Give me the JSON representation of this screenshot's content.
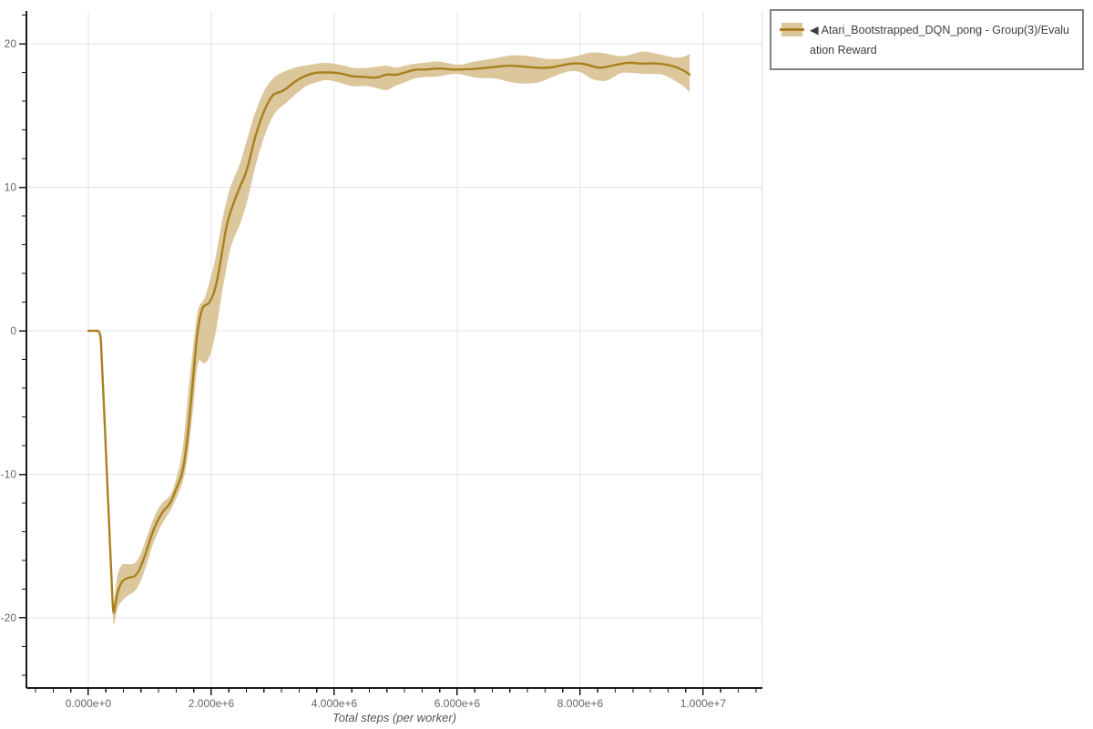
{
  "legend": {
    "marker": "◀",
    "label": "Atari_Bootstrapped_DQN_pong - Group(3)/Evaluation Reward"
  },
  "colors": {
    "line": "#a9801e",
    "band": "#dcc79c",
    "grid": "#e3e3e3",
    "plot_border": "#dddddd",
    "axis": "#1a1a1a",
    "tick_text": "#666666",
    "axis_title_text": "#555555",
    "legend_border": "#828282",
    "background": "#ffffff"
  },
  "chart_data": {
    "type": "line",
    "title": "",
    "xlabel": "Total steps (per worker)",
    "ylabel": "",
    "grid": true,
    "legend_position": "top-right-outside",
    "xlim": [
      -1007000,
      10963000
    ],
    "ylim": [
      -24.889,
      22.286
    ],
    "x_ticks": {
      "values": [
        0,
        2000000,
        4000000,
        6000000,
        8000000,
        10000000
      ],
      "labels": [
        "0.000e+0",
        "2.000e+6",
        "4.000e+6",
        "6.000e+6",
        "8.000e+6",
        "1.000e+7"
      ],
      "minors_per_interval": 6
    },
    "y_ticks": {
      "values": [
        20,
        10,
        0,
        -10,
        -20
      ],
      "labels": [
        "20",
        "10",
        "0",
        "-10",
        "-20"
      ],
      "minor_step": 2
    },
    "series": [
      {
        "name": "Atari_Bootstrapped_DQN_pong - Group(3)/Evaluation Reward",
        "color": "#a9801e",
        "band_color": "#dcc79c",
        "points_format": [
          "steps",
          "mean_reward",
          "band_low",
          "band_high"
        ],
        "points": [
          [
            0,
            0,
            0,
            0
          ],
          [
            100000,
            0,
            0,
            0
          ],
          [
            195000,
            0,
            -0.1,
            0.1
          ],
          [
            215000,
            -1.5,
            -1.9,
            -1.2
          ],
          [
            300000,
            -9.7,
            -10.3,
            -9.2
          ],
          [
            390000,
            -18.6,
            -19.5,
            -17.9
          ],
          [
            410000,
            -19.9,
            -20.7,
            -19.3
          ],
          [
            440000,
            -19.0,
            -20.0,
            -18.0
          ],
          [
            480000,
            -18.1,
            -19.2,
            -16.8
          ],
          [
            550000,
            -17.4,
            -18.8,
            -16.2
          ],
          [
            650000,
            -17.2,
            -18.4,
            -16.3
          ],
          [
            790000,
            -17.1,
            -18.1,
            -16.2
          ],
          [
            930000,
            -15.6,
            -16.6,
            -14.7
          ],
          [
            1050000,
            -13.9,
            -14.8,
            -13.1
          ],
          [
            1200000,
            -12.6,
            -13.4,
            -11.9
          ],
          [
            1330000,
            -12.1,
            -12.6,
            -11.6
          ],
          [
            1430000,
            -11.0,
            -11.7,
            -10.4
          ],
          [
            1530000,
            -10.0,
            -10.7,
            -8.6
          ],
          [
            1600000,
            -8.0,
            -9.3,
            -5.5
          ],
          [
            1650000,
            -5.9,
            -7.6,
            -3.2
          ],
          [
            1720000,
            -2.5,
            -4.8,
            -0.5
          ],
          [
            1780000,
            0.2,
            -1.9,
            1.6
          ],
          [
            1850000,
            1.6,
            -2.2,
            2.0
          ],
          [
            1900000,
            1.8,
            -2.3,
            2.3
          ],
          [
            1970000,
            1.9,
            -1.9,
            3.4
          ],
          [
            2070000,
            2.9,
            -0.3,
            5.0
          ],
          [
            2170000,
            5.3,
            2.6,
            7.6
          ],
          [
            2240000,
            7.2,
            4.2,
            8.9
          ],
          [
            2310000,
            8.3,
            5.9,
            10.1
          ],
          [
            2460000,
            10.0,
            7.3,
            11.5
          ],
          [
            2560000,
            10.9,
            8.6,
            13.0
          ],
          [
            2640000,
            12.2,
            10.0,
            14.2
          ],
          [
            2710000,
            13.5,
            11.4,
            15.2
          ],
          [
            2860000,
            15.4,
            13.6,
            16.8
          ],
          [
            3000000,
            16.5,
            15.0,
            17.6
          ],
          [
            3100000,
            16.6,
            15.5,
            17.9
          ],
          [
            3200000,
            16.8,
            15.8,
            18.1
          ],
          [
            3400000,
            17.5,
            16.6,
            18.4
          ],
          [
            3550000,
            17.8,
            17.1,
            18.5
          ],
          [
            3700000,
            18.0,
            17.3,
            18.6
          ],
          [
            3850000,
            18.0,
            17.5,
            18.7
          ],
          [
            4000000,
            18.0,
            17.4,
            18.6
          ],
          [
            4150000,
            17.9,
            17.2,
            18.5
          ],
          [
            4300000,
            17.7,
            17.0,
            18.3
          ],
          [
            4500000,
            17.7,
            17.1,
            18.3
          ],
          [
            4700000,
            17.6,
            16.9,
            18.4
          ],
          [
            4850000,
            17.9,
            16.7,
            18.5
          ],
          [
            5000000,
            17.8,
            17.1,
            18.3
          ],
          [
            5150000,
            18.0,
            17.3,
            18.5
          ],
          [
            5300000,
            18.2,
            17.6,
            18.6
          ],
          [
            5500000,
            18.2,
            17.7,
            18.7
          ],
          [
            5700000,
            18.3,
            17.7,
            18.8
          ],
          [
            5900000,
            18.2,
            17.9,
            18.6
          ],
          [
            6050000,
            18.2,
            17.9,
            18.5
          ],
          [
            6300000,
            18.25,
            17.6,
            18.8
          ],
          [
            6650000,
            18.4,
            17.6,
            19.0
          ],
          [
            6850000,
            18.5,
            17.3,
            19.2
          ],
          [
            7100000,
            18.4,
            17.2,
            19.2
          ],
          [
            7350000,
            18.3,
            17.3,
            19.0
          ],
          [
            7550000,
            18.35,
            17.7,
            18.9
          ],
          [
            7800000,
            18.6,
            18.1,
            19.0
          ],
          [
            8000000,
            18.65,
            18.1,
            19.2
          ],
          [
            8150000,
            18.5,
            17.6,
            19.4
          ],
          [
            8300000,
            18.3,
            17.4,
            19.4
          ],
          [
            8450000,
            18.4,
            17.4,
            19.3
          ],
          [
            8650000,
            18.6,
            18.0,
            19.1
          ],
          [
            8800000,
            18.7,
            18.0,
            19.2
          ],
          [
            9000000,
            18.6,
            17.9,
            19.5
          ],
          [
            9150000,
            18.65,
            17.9,
            19.4
          ],
          [
            9350000,
            18.6,
            17.9,
            19.2
          ],
          [
            9550000,
            18.4,
            17.4,
            19.0
          ],
          [
            9700000,
            18.1,
            17.0,
            19.1
          ],
          [
            9780000,
            17.85,
            16.6,
            19.3
          ]
        ]
      }
    ]
  }
}
